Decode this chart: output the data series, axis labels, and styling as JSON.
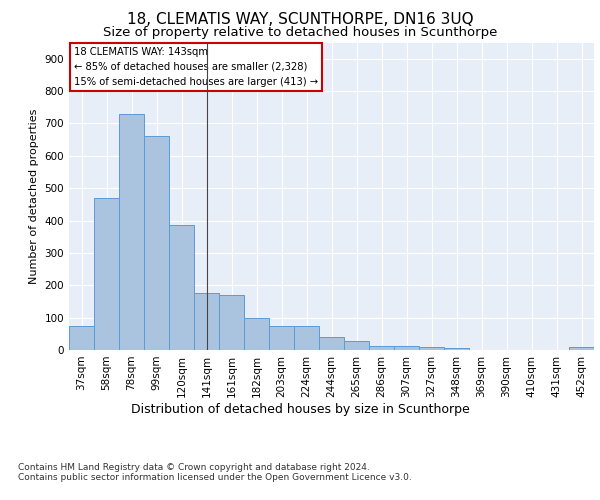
{
  "title": "18, CLEMATIS WAY, SCUNTHORPE, DN16 3UQ",
  "subtitle": "Size of property relative to detached houses in Scunthorpe",
  "xlabel": "Distribution of detached houses by size in Scunthorpe",
  "ylabel": "Number of detached properties",
  "categories": [
    "37sqm",
    "58sqm",
    "78sqm",
    "99sqm",
    "120sqm",
    "141sqm",
    "161sqm",
    "182sqm",
    "203sqm",
    "224sqm",
    "244sqm",
    "265sqm",
    "286sqm",
    "307sqm",
    "327sqm",
    "348sqm",
    "369sqm",
    "390sqm",
    "410sqm",
    "431sqm",
    "452sqm"
  ],
  "values": [
    75,
    470,
    730,
    660,
    385,
    175,
    170,
    100,
    75,
    75,
    40,
    28,
    12,
    12,
    8,
    5,
    0,
    0,
    0,
    0,
    8
  ],
  "bar_color": "#aac4e0",
  "bar_edge_color": "#5b9bd5",
  "annotation_text": "18 CLEMATIS WAY: 143sqm\n← 85% of detached houses are smaller (2,328)\n15% of semi-detached houses are larger (413) →",
  "annotation_box_color": "#ffffff",
  "annotation_box_edge_color": "#cc0000",
  "vline_x": 5,
  "ylim": [
    0,
    950
  ],
  "yticks": [
    0,
    100,
    200,
    300,
    400,
    500,
    600,
    700,
    800,
    900
  ],
  "background_color": "#e8eef8",
  "footer_line1": "Contains HM Land Registry data © Crown copyright and database right 2024.",
  "footer_line2": "Contains public sector information licensed under the Open Government Licence v3.0.",
  "title_fontsize": 11,
  "subtitle_fontsize": 9.5,
  "xlabel_fontsize": 9,
  "ylabel_fontsize": 8,
  "tick_fontsize": 7.5,
  "footer_fontsize": 6.5
}
